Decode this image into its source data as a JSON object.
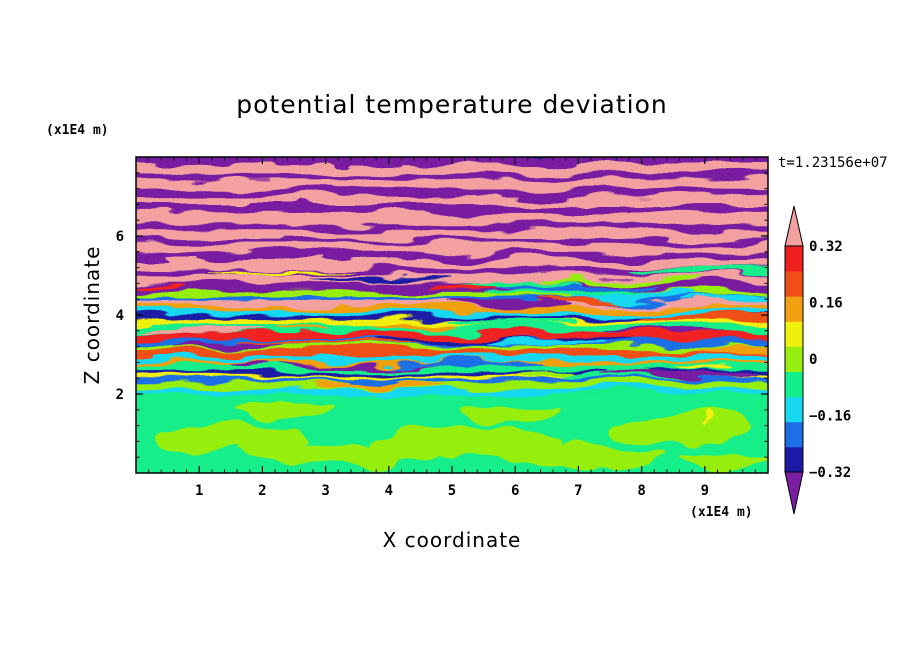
{
  "chart_data": {
    "type": "heatmap",
    "title": "potential temperature deviation",
    "xlabel": "X coordinate",
    "ylabel": "Z coordinate",
    "x_unit": "(x1E4 m)",
    "y_unit": "(x1E4 m)",
    "time_label": "t=1.23156e+07",
    "xlim": [
      0,
      10
    ],
    "ylim": [
      0,
      8
    ],
    "x_ticks": [
      "1",
      "2",
      "3",
      "4",
      "5",
      "6",
      "7",
      "8",
      "9"
    ],
    "y_ticks": [
      "2",
      "4",
      "6"
    ],
    "colorbar": {
      "levels": [
        -0.4,
        -0.32,
        -0.24,
        -0.16,
        -0.08,
        0,
        0.08,
        0.16,
        0.24,
        0.32,
        0.4
      ],
      "labels": [
        "0.32",
        "0.16",
        "0",
        "−0.16",
        "−0.32"
      ],
      "label_values": [
        0.32,
        0.16,
        0,
        -0.16,
        -0.32
      ],
      "colors": [
        "#7a1fa2",
        "#1a1aa6",
        "#1e6fe6",
        "#18d8f0",
        "#14ee8a",
        "#96ee10",
        "#f0f010",
        "#f0a010",
        "#f05018",
        "#f02020",
        "#f2a0a0"
      ],
      "extend": "both"
    },
    "structure": [
      {
        "z_range": [
          0,
          2
        ],
        "description_values": "near-neutral, values mostly between -0.08 and 0.08"
      },
      {
        "z_range": [
          2,
          4.5
        ],
        "description_values": "mixed layer, alternating -0.4 to 0.4"
      },
      {
        "z_range": [
          4.5,
          8
        ],
        "description_values": "stratified bands alternating below -0.4 and above 0.4"
      }
    ]
  }
}
